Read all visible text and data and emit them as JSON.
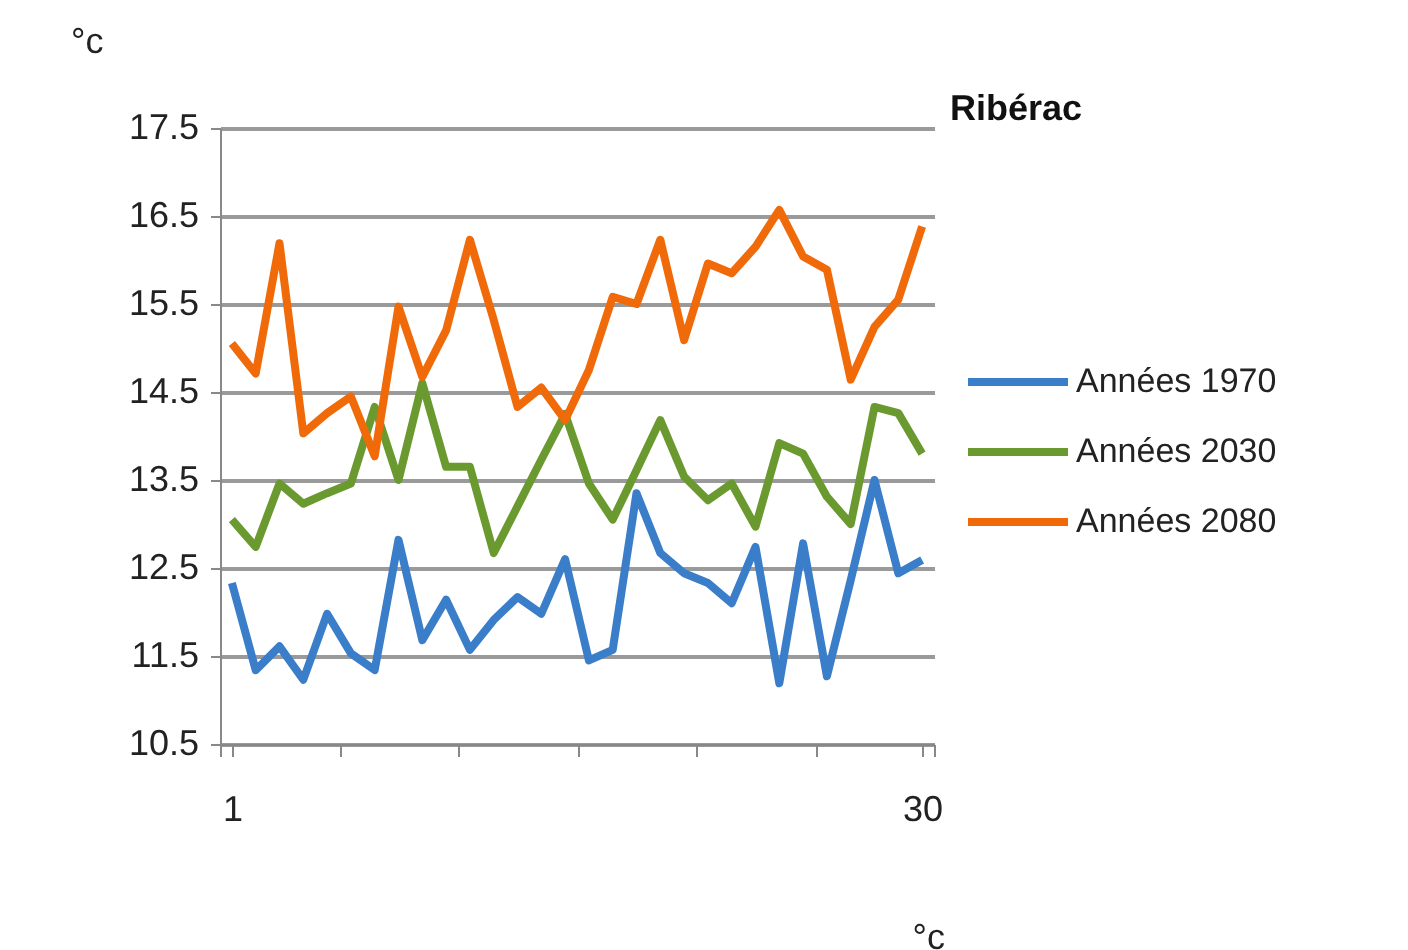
{
  "chart_data": {
    "type": "line",
    "title": "Ribérac",
    "xlabel": "°c",
    "ylabel": "°c",
    "x": [
      1,
      2,
      3,
      4,
      5,
      6,
      7,
      8,
      9,
      10,
      11,
      12,
      13,
      14,
      15,
      16,
      17,
      18,
      19,
      20,
      21,
      22,
      23,
      24,
      25,
      26,
      27,
      28,
      29,
      30
    ],
    "xlim": [
      0.5,
      30.5
    ],
    "xticks": [
      {
        "value": 0.5,
        "label": null
      },
      1,
      {
        "value": 5.5,
        "label": null
      },
      {
        "value": 10.5,
        "label": null
      },
      {
        "value": 15.5,
        "label": null
      },
      {
        "value": 20.5,
        "label": null
      },
      {
        "value": 25.5,
        "label": null
      },
      30,
      {
        "value": 30.5,
        "label": null
      }
    ],
    "ylim": [
      10.5,
      17.5
    ],
    "yticks": [
      10.5,
      11.5,
      12.5,
      13.5,
      14.5,
      15.5,
      16.5,
      17.5
    ],
    "grid": "y",
    "legend": "right",
    "marker": "none",
    "line_style": "solid",
    "series": [
      {
        "name": "Années 1970",
        "color": "#3a7dc9",
        "values": [
          12.33,
          11.34,
          11.61,
          11.23,
          11.98,
          11.53,
          11.34,
          12.82,
          11.68,
          12.14,
          11.57,
          11.91,
          12.17,
          11.98,
          12.6,
          11.45,
          11.57,
          13.35,
          12.67,
          12.44,
          12.33,
          12.1,
          12.74,
          11.19,
          12.78,
          11.27,
          12.36,
          13.5,
          12.44,
          12.59
        ]
      },
      {
        "name": "Années 2030",
        "color": "#6a9a2f",
        "values": [
          13.05,
          12.74,
          13.46,
          13.23,
          13.35,
          13.46,
          14.33,
          13.5,
          14.6,
          13.65,
          13.65,
          12.67,
          13.2,
          13.73,
          14.25,
          13.46,
          13.05,
          13.61,
          14.18,
          13.54,
          13.27,
          13.46,
          12.97,
          13.92,
          13.8,
          13.31,
          13.0,
          14.33,
          14.26,
          13.8
        ]
      },
      {
        "name": "Années 2080",
        "color": "#f06a0a",
        "values": [
          15.05,
          14.71,
          16.19,
          14.03,
          14.26,
          14.45,
          13.77,
          15.47,
          14.67,
          15.2,
          16.23,
          15.32,
          14.33,
          14.55,
          14.18,
          14.75,
          15.58,
          15.5,
          16.23,
          15.09,
          15.96,
          15.85,
          16.15,
          16.57,
          16.04,
          15.89,
          14.64,
          15.24,
          15.55,
          16.38
        ]
      }
    ]
  }
}
